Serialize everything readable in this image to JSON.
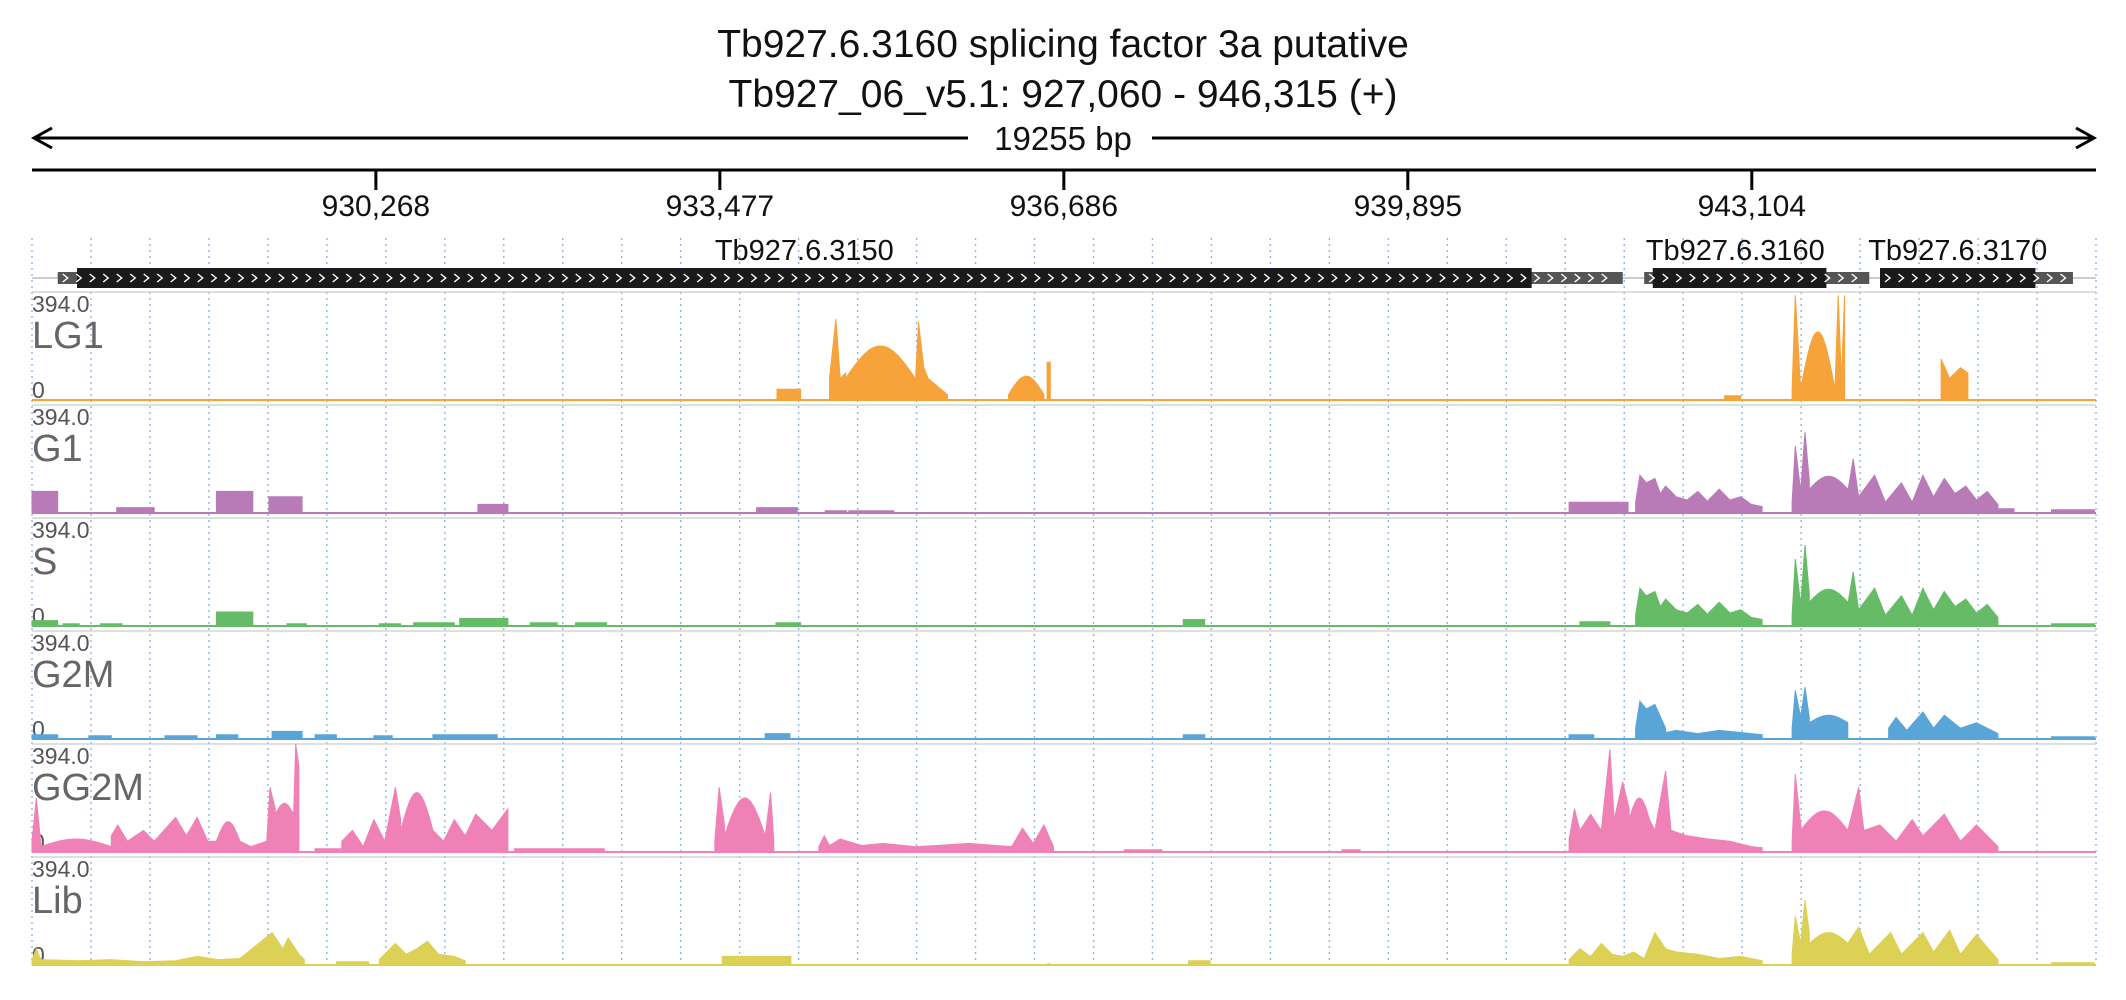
{
  "chart_data": {
    "type": "area",
    "title_line1": "Tb927.6.3160  splicing factor 3a  putative",
    "title_line2": "Tb927_06_v5.1: 927,060 - 946,315 (+)",
    "span_label": "19255 bp",
    "x_range": [
      927060,
      946315
    ],
    "ticks": [
      930268,
      933477,
      936686,
      939895,
      943104
    ],
    "tick_labels": [
      "930,268",
      "933,477",
      "936,686",
      "939,895",
      "943,104"
    ],
    "genes": [
      {
        "name": "Tb927.6.3150",
        "utr_start": 927300,
        "cds_start": 927480,
        "cds_end": 941050,
        "utr_end": 941900
      },
      {
        "name": "Tb927.6.3160",
        "utr_start": 942100,
        "cds_start": 942180,
        "cds_end": 943800,
        "utr_end": 944200
      },
      {
        "name": "Tb927.6.3170",
        "utr_start": 944300,
        "cds_start": 944300,
        "cds_end": 945750,
        "utr_end": 946100
      }
    ],
    "tracks": [
      {
        "name": "LG1",
        "max": "394.0",
        "min": "0",
        "color": "#f5a33a",
        "data": [
          [
            934010,
            934230,
            0.1
          ],
          [
            934500,
            935680,
            "A"
          ],
          [
            936170,
            936500,
            "B"
          ],
          [
            936530,
            936560,
            0.35
          ],
          [
            942850,
            943000,
            0.04
          ],
          [
            943480,
            943970,
            "C"
          ],
          [
            944870,
            945120,
            "D"
          ]
        ]
      },
      {
        "name": "G1",
        "max": "394.0",
        "min": "0",
        "color": "#b87bb8",
        "data": [
          [
            927060,
            927300,
            0.2
          ],
          [
            927850,
            928200,
            0.05
          ],
          [
            928780,
            929120,
            0.2
          ],
          [
            929270,
            929580,
            0.15
          ],
          [
            931220,
            931500,
            0.08
          ],
          [
            933820,
            934200,
            0.05
          ],
          [
            934460,
            934660,
            0.02
          ],
          [
            934680,
            935100,
            0.02
          ],
          [
            941400,
            941950,
            0.1
          ],
          [
            942020,
            942700,
            "E"
          ],
          [
            942700,
            943200,
            "F"
          ],
          [
            943480,
            944000,
            "G"
          ],
          [
            944000,
            945400,
            "H"
          ],
          [
            945400,
            945550,
            0.04
          ],
          [
            945900,
            946300,
            0.03
          ]
        ]
      },
      {
        "name": "S",
        "max": "394.0",
        "min": "0",
        "color": "#66bb66",
        "data": [
          [
            927060,
            927300,
            0.05
          ],
          [
            927350,
            927500,
            0.02
          ],
          [
            927700,
            927900,
            0.02
          ],
          [
            928780,
            929120,
            0.13
          ],
          [
            929440,
            929620,
            0.02
          ],
          [
            930300,
            930500,
            0.02
          ],
          [
            930620,
            931000,
            0.03
          ],
          [
            931050,
            931500,
            0.07
          ],
          [
            931710,
            931960,
            0.03
          ],
          [
            932130,
            932420,
            0.03
          ],
          [
            934000,
            934230,
            0.03
          ],
          [
            937800,
            938000,
            0.06
          ],
          [
            941500,
            941780,
            0.04
          ],
          [
            942020,
            942700,
            "E"
          ],
          [
            942700,
            943200,
            "F"
          ],
          [
            943480,
            944000,
            "G"
          ],
          [
            944000,
            945400,
            "H"
          ],
          [
            945900,
            946300,
            0.02
          ]
        ]
      },
      {
        "name": "G2M",
        "max": "394.0",
        "min": "0",
        "color": "#5aa5d8",
        "data": [
          [
            927060,
            927300,
            0.04
          ],
          [
            927590,
            927800,
            0.03
          ],
          [
            928300,
            928600,
            0.03
          ],
          [
            928780,
            928980,
            0.04
          ],
          [
            929300,
            929580,
            0.07
          ],
          [
            929700,
            929900,
            0.04
          ],
          [
            930250,
            930420,
            0.03
          ],
          [
            930800,
            931100,
            0.04
          ],
          [
            931100,
            931400,
            0.04
          ],
          [
            933900,
            934130,
            0.05
          ],
          [
            937800,
            938000,
            0.04
          ],
          [
            941400,
            941630,
            0.04
          ],
          [
            942020,
            942300,
            "E2"
          ],
          [
            942300,
            943200,
            "F2"
          ],
          [
            943480,
            944000,
            "G2"
          ],
          [
            944380,
            945400,
            "H2"
          ],
          [
            945900,
            946300,
            0.02
          ]
        ]
      },
      {
        "name": "GG2M",
        "max": "394.0",
        "min": "0",
        "color": "#f081b6",
        "data": [
          [
            927060,
            929550,
            "P1"
          ],
          [
            929700,
            930100,
            0.03
          ],
          [
            929950,
            931500,
            "P2"
          ],
          [
            931560,
            932400,
            0.03
          ],
          [
            933430,
            933980,
            "P3"
          ],
          [
            934400,
            936590,
            "P4"
          ],
          [
            937250,
            937600,
            0.02
          ],
          [
            939280,
            939450,
            0.02
          ],
          [
            941400,
            942200,
            "P5"
          ],
          [
            942200,
            943200,
            "F3"
          ],
          [
            943480,
            944000,
            "G3"
          ],
          [
            944000,
            945400,
            "H3"
          ]
        ]
      },
      {
        "name": "Lib",
        "max": "394.0",
        "min": "0",
        "color": "#dcd055",
        "data": [
          [
            927060,
            929600,
            "L1"
          ],
          [
            929900,
            930200,
            0.03
          ],
          [
            930300,
            931100,
            "L2"
          ],
          [
            933500,
            934140,
            0.08
          ],
          [
            936530,
            936560,
            0.01
          ],
          [
            937850,
            938050,
            0.04
          ],
          [
            941400,
            942100,
            "L3"
          ],
          [
            942100,
            943200,
            "F4"
          ],
          [
            943480,
            944000,
            "G4"
          ],
          [
            944000,
            945400,
            "H4"
          ],
          [
            945900,
            946300,
            0.02
          ]
        ]
      }
    ]
  }
}
